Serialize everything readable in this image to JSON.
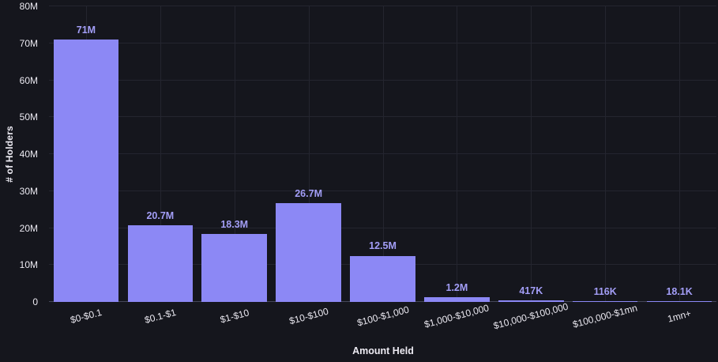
{
  "chart_data": {
    "type": "bar",
    "title": "",
    "xlabel": "Amount Held",
    "ylabel": "# of Holders",
    "categories": [
      "$0-$0.1",
      "$0.1-$1",
      "$1-$10",
      "$10-$100",
      "$100-$1,000",
      "$1,000-$10,000",
      "$10,000-$100,000",
      "$100,000-$1mn",
      "1mn+"
    ],
    "values": [
      71000000,
      20700000,
      18300000,
      26700000,
      12500000,
      1200000,
      417000,
      116000,
      18100
    ],
    "value_labels": [
      "71M",
      "20.7M",
      "18.3M",
      "26.7M",
      "12.5M",
      "1.2M",
      "417K",
      "116K",
      "18.1K"
    ],
    "ylim": [
      0,
      80000000
    ],
    "yticks": [
      {
        "value": 0,
        "label": "0"
      },
      {
        "value": 10000000,
        "label": "10M"
      },
      {
        "value": 20000000,
        "label": "20M"
      },
      {
        "value": 30000000,
        "label": "30M"
      },
      {
        "value": 40000000,
        "label": "40M"
      },
      {
        "value": 50000000,
        "label": "50M"
      },
      {
        "value": 60000000,
        "label": "60M"
      },
      {
        "value": 70000000,
        "label": "70M"
      },
      {
        "value": 80000000,
        "label": "80M"
      }
    ],
    "grid": true,
    "legend": "none",
    "colors": {
      "background": "#15161d",
      "bar": "#8c88f5",
      "value_label": "#a39ef7",
      "axis_text": "#eceaf2",
      "gridline": "#24252f",
      "axis_line": "#45475a"
    }
  }
}
